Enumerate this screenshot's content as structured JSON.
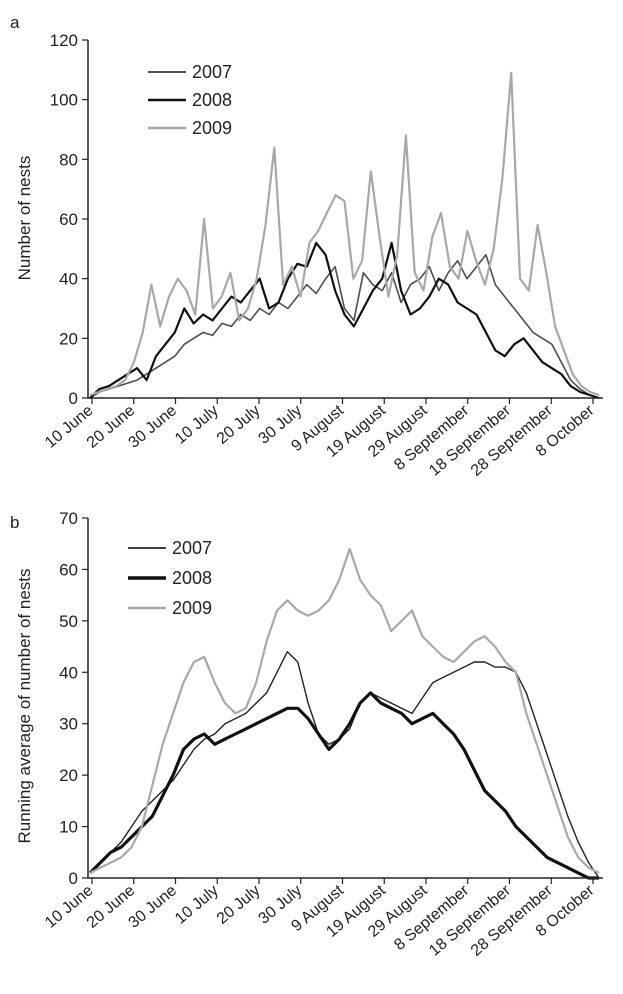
{
  "chart_data": [
    {
      "panel_label": "a",
      "type": "line",
      "ylabel": "Number of nests",
      "ylim": [
        0,
        120
      ],
      "yticks": [
        "0",
        "20",
        "40",
        "60",
        "80",
        "100",
        "120"
      ],
      "xticks": [
        "10 June",
        "20 June",
        "30 June",
        "10 July",
        "20 July",
        "30 July",
        "9 August",
        "19 August",
        "29 August",
        "8 September",
        "18 September",
        "28 September",
        "8 October"
      ],
      "x_start": "10 June",
      "x_step_days": 2,
      "legend": [
        "2007",
        "2008",
        "2009"
      ],
      "series": [
        {
          "name": "2007",
          "color": "#4d4d4d",
          "values": [
            0,
            2,
            3,
            4,
            5,
            6,
            8,
            10,
            12,
            14,
            18,
            20,
            22,
            21,
            25,
            24,
            28,
            26,
            30,
            28,
            32,
            30,
            34,
            38,
            35,
            40,
            44,
            30,
            26,
            42,
            38,
            36,
            42,
            32,
            38,
            40,
            44,
            36,
            42,
            46,
            40,
            44,
            48,
            38,
            34,
            30,
            26,
            22,
            20,
            18,
            12,
            6,
            3,
            1,
            0
          ]
        },
        {
          "name": "2008",
          "color": "#111111",
          "values": [
            0,
            3,
            4,
            6,
            8,
            10,
            6,
            14,
            18,
            22,
            30,
            25,
            28,
            26,
            30,
            34,
            32,
            36,
            40,
            30,
            32,
            40,
            45,
            44,
            52,
            48,
            36,
            28,
            24,
            30,
            36,
            40,
            52,
            36,
            28,
            30,
            34,
            40,
            38,
            32,
            30,
            28,
            22,
            16,
            14,
            18,
            20,
            16,
            12,
            10,
            8,
            4,
            2,
            1,
            0
          ]
        },
        {
          "name": "2009",
          "color": "#a8a8a8",
          "values": [
            1,
            2,
            3,
            4,
            6,
            12,
            22,
            38,
            24,
            34,
            40,
            36,
            28,
            60,
            30,
            34,
            42,
            26,
            30,
            40,
            58,
            84,
            38,
            44,
            34,
            52,
            56,
            62,
            68,
            66,
            40,
            46,
            76,
            54,
            34,
            48,
            88,
            42,
            36,
            54,
            62,
            44,
            40,
            56,
            46,
            38,
            50,
            74,
            109,
            40,
            36,
            58,
            42,
            24,
            16,
            8,
            4,
            2,
            1
          ]
        }
      ]
    },
    {
      "panel_label": "b",
      "type": "line",
      "ylabel": "Running average of number of nests",
      "ylim": [
        0,
        70
      ],
      "yticks": [
        "0",
        "10",
        "20",
        "30",
        "40",
        "50",
        "60",
        "70"
      ],
      "xticks": [
        "10 June",
        "20 June",
        "30 June",
        "10 July",
        "20 July",
        "30 July",
        "9 August",
        "19 August",
        "29 August",
        "8 September",
        "18 September",
        "28 September",
        "8 October"
      ],
      "x_start": "10 June",
      "x_step_days": 2,
      "legend": [
        "2007",
        "2008",
        "2009"
      ],
      "series": [
        {
          "name": "2007",
          "color": "#222222",
          "values": [
            1,
            3,
            5,
            7,
            10,
            13,
            15,
            17,
            19,
            22,
            25,
            27,
            28,
            30,
            31,
            32,
            34,
            36,
            40,
            44,
            42,
            34,
            28,
            26,
            27,
            29,
            34,
            36,
            35,
            34,
            33,
            32,
            35,
            38,
            39,
            40,
            41,
            42,
            42,
            41,
            41,
            40,
            36,
            30,
            24,
            18,
            12,
            7,
            3,
            0
          ]
        },
        {
          "name": "2008",
          "color": "#111111",
          "values": [
            1,
            3,
            5,
            6,
            8,
            10,
            12,
            16,
            20,
            25,
            27,
            28,
            26,
            27,
            28,
            29,
            30,
            31,
            32,
            33,
            33,
            31,
            28,
            25,
            27,
            30,
            34,
            36,
            34,
            33,
            32,
            30,
            31,
            32,
            30,
            28,
            25,
            21,
            17,
            15,
            13,
            10,
            8,
            6,
            4,
            3,
            2,
            1,
            0,
            0
          ]
        },
        {
          "name": "2009",
          "color": "#a8a8a8",
          "values": [
            1,
            2,
            3,
            4,
            6,
            10,
            18,
            26,
            32,
            38,
            42,
            43,
            38,
            34,
            32,
            33,
            38,
            46,
            52,
            54,
            52,
            51,
            52,
            54,
            58,
            64,
            58,
            55,
            53,
            48,
            50,
            52,
            47,
            45,
            43,
            42,
            44,
            46,
            47,
            45,
            42,
            40,
            32,
            26,
            20,
            14,
            8,
            4,
            2,
            1
          ]
        }
      ]
    }
  ]
}
